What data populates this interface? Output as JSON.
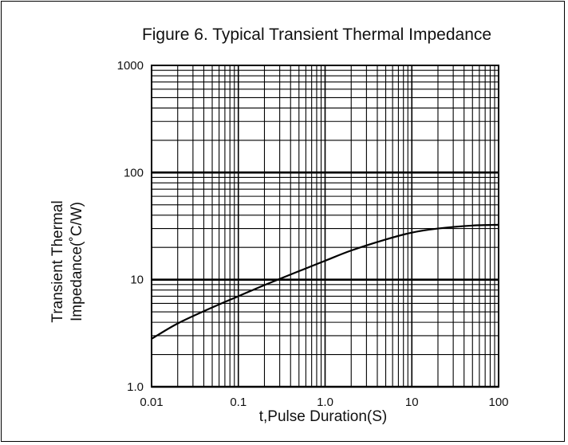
{
  "chart_data": {
    "type": "line",
    "title": "Figure 6. Typical Transient Thermal Impedance",
    "xlabel": "t,Pulse Duration(S)",
    "ylabel_lines": [
      "Transient Thermal",
      "Impedance(˚C/W)"
    ],
    "x_scale": "log",
    "y_scale": "log",
    "xlim": [
      0.01,
      100
    ],
    "ylim": [
      1.0,
      1000
    ],
    "x_ticks": [
      0.01,
      0.1,
      1.0,
      10,
      100
    ],
    "x_tick_labels": [
      "0.01",
      "0.1",
      "1.0",
      "10",
      "100"
    ],
    "y_ticks": [
      1.0,
      10,
      100,
      1000
    ],
    "y_tick_labels": [
      "1.0",
      "10",
      "100",
      "1000"
    ],
    "grid": true,
    "series": [
      {
        "x": [
          0.01,
          0.02,
          0.05,
          0.1,
          0.2,
          0.5,
          1,
          2,
          5,
          10,
          20,
          50,
          100
        ],
        "y": [
          2.8,
          3.9,
          5.5,
          7.0,
          8.9,
          12.0,
          15.0,
          18.7,
          23.7,
          27.5,
          30.0,
          32.0,
          32.5
        ]
      }
    ],
    "line_color": "#000000"
  }
}
